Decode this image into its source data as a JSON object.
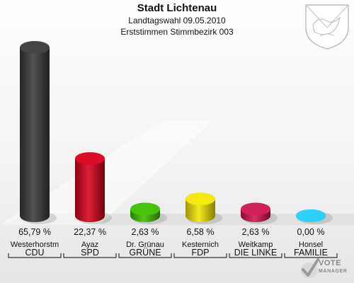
{
  "header": {
    "title": "Stadt Lichtenau",
    "subtitle": "Landtagswahl 09.05.2010",
    "subtitle2": "Erststimmen Stimmbezirk 003"
  },
  "logo": {
    "line1": "VOTE",
    "line2": "MANAGER"
  },
  "chart_data": {
    "type": "bar",
    "categories": [
      "CDU",
      "SPD",
      "GRÜNE",
      "FDP",
      "DIE LINKE",
      "FAMILIE"
    ],
    "candidates": [
      "Westerhorstm",
      "Ayaz",
      "Dr. Grünau",
      "Kesternich",
      "Weitkamp",
      "Honsel"
    ],
    "values": [
      65.79,
      22.37,
      2.63,
      6.58,
      2.63,
      0.0
    ],
    "labels": [
      "65,79 %",
      "22,37 %",
      "2,63 %",
      "6,58 %",
      "2,63 %",
      "0,00 %"
    ],
    "colors": [
      "#3a3a3a",
      "#d8001c",
      "#3fbf00",
      "#f5e600",
      "#d0154f",
      "#22cfff"
    ],
    "ylim": [
      0,
      70
    ],
    "legend": "none",
    "grid": false
  }
}
